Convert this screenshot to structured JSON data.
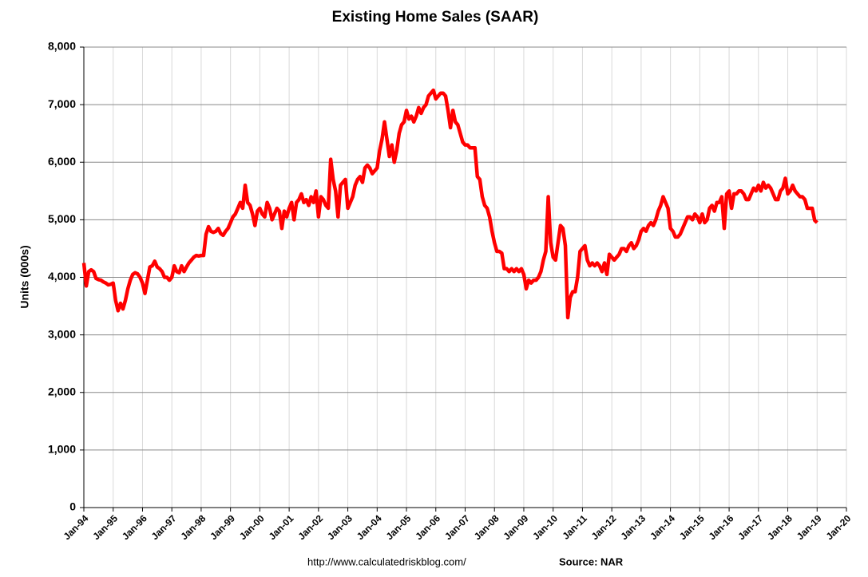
{
  "chart_data": {
    "type": "line",
    "title": "Existing Home Sales (SAAR)",
    "y_label": "Units (000s)",
    "footer_url": "http://www.calculatedriskblog.com/",
    "footer_source": "Source: NAR",
    "color": "#ff0000",
    "grid": true,
    "ylim": [
      0,
      8000
    ],
    "yticks": [
      0,
      {
        "value": 1000,
        "label": "1,000"
      },
      {
        "value": 2000,
        "label": "2,000"
      },
      {
        "value": 3000,
        "label": "3,000"
      },
      {
        "value": 4000,
        "label": "4,000"
      },
      {
        "value": 5000,
        "label": "5,000"
      },
      {
        "value": 6000,
        "label": "6,000"
      },
      {
        "value": 7000,
        "label": "7,000"
      },
      {
        "value": 8000,
        "label": "8,000"
      }
    ],
    "categories": [
      "Jan-94",
      null,
      null,
      null,
      null,
      null,
      null,
      null,
      null,
      null,
      null,
      null,
      "Jan-95",
      null,
      null,
      null,
      null,
      null,
      null,
      null,
      null,
      null,
      null,
      null,
      "Jan-96",
      null,
      null,
      null,
      null,
      null,
      null,
      null,
      null,
      null,
      null,
      null,
      "Jan-97",
      null,
      null,
      null,
      null,
      null,
      null,
      null,
      null,
      null,
      null,
      null,
      "Jan-98",
      null,
      null,
      null,
      null,
      null,
      null,
      null,
      null,
      null,
      null,
      null,
      "Jan-99",
      null,
      null,
      null,
      null,
      null,
      null,
      null,
      null,
      null,
      null,
      null,
      "Jan-00",
      null,
      null,
      null,
      null,
      null,
      null,
      null,
      null,
      null,
      null,
      null,
      "Jan-01",
      null,
      null,
      null,
      null,
      null,
      null,
      null,
      null,
      null,
      null,
      null,
      "Jan-02",
      null,
      null,
      null,
      null,
      null,
      null,
      null,
      null,
      null,
      null,
      null,
      "Jan-03",
      null,
      null,
      null,
      null,
      null,
      null,
      null,
      null,
      null,
      null,
      null,
      "Jan-04",
      null,
      null,
      null,
      null,
      null,
      null,
      null,
      null,
      null,
      null,
      null,
      "Jan-05",
      null,
      null,
      null,
      null,
      null,
      null,
      null,
      null,
      null,
      null,
      null,
      "Jan-06",
      null,
      null,
      null,
      null,
      null,
      null,
      null,
      null,
      null,
      null,
      null,
      "Jan-07",
      null,
      null,
      null,
      null,
      null,
      null,
      null,
      null,
      null,
      null,
      null,
      "Jan-08",
      null,
      null,
      null,
      null,
      null,
      null,
      null,
      null,
      null,
      null,
      null,
      "Jan-09",
      null,
      null,
      null,
      null,
      null,
      null,
      null,
      null,
      null,
      null,
      null,
      "Jan-10",
      null,
      null,
      null,
      null,
      null,
      null,
      null,
      null,
      null,
      null,
      null,
      "Jan-11",
      null,
      null,
      null,
      null,
      null,
      null,
      null,
      null,
      null,
      null,
      null,
      "Jan-12",
      null,
      null,
      null,
      null,
      null,
      null,
      null,
      null,
      null,
      null,
      null,
      "Jan-13",
      null,
      null,
      null,
      null,
      null,
      null,
      null,
      null,
      null,
      null,
      null,
      "Jan-14",
      null,
      null,
      null,
      null,
      null,
      null,
      null,
      null,
      null,
      null,
      null,
      "Jan-15",
      null,
      null,
      null,
      null,
      null,
      null,
      null,
      null,
      null,
      null,
      null,
      "Jan-16",
      null,
      null,
      null,
      null,
      null,
      null,
      null,
      null,
      null,
      null,
      null,
      "Jan-17",
      null,
      null,
      null,
      null,
      null,
      null,
      null,
      null,
      null,
      null,
      null,
      "Jan-18",
      null,
      null,
      null,
      null,
      null,
      null,
      null,
      null,
      null,
      null,
      null,
      "Jan-19",
      null,
      null,
      null,
      null,
      null,
      null,
      null,
      null,
      null,
      null,
      null,
      "Jan-20"
    ],
    "values": [
      4250,
      3850,
      4100,
      4130,
      4100,
      3980,
      3960,
      3950,
      3920,
      3900,
      3870,
      3880,
      3900,
      3600,
      3420,
      3550,
      3450,
      3600,
      3800,
      3950,
      4050,
      4080,
      4060,
      4000,
      3900,
      3720,
      3950,
      4180,
      4200,
      4280,
      4180,
      4150,
      4100,
      4000,
      4000,
      3950,
      4000,
      4200,
      4100,
      4080,
      4200,
      4100,
      4180,
      4250,
      4300,
      4350,
      4380,
      4370,
      4380,
      4380,
      4750,
      4880,
      4800,
      4780,
      4800,
      4850,
      4760,
      4730,
      4800,
      4850,
      4950,
      5050,
      5100,
      5200,
      5300,
      5200,
      5600,
      5300,
      5250,
      5100,
      4900,
      5150,
      5200,
      5100,
      5050,
      5300,
      5200,
      5000,
      5100,
      5200,
      5150,
      4850,
      5150,
      5050,
      5200,
      5300,
      5000,
      5300,
      5350,
      5450,
      5300,
      5350,
      5250,
      5400,
      5300,
      5500,
      5050,
      5400,
      5350,
      5250,
      5200,
      6050,
      5700,
      5500,
      5050,
      5600,
      5650,
      5700,
      5200,
      5300,
      5400,
      5600,
      5700,
      5750,
      5650,
      5900,
      5950,
      5900,
      5800,
      5850,
      5900,
      6200,
      6400,
      6700,
      6400,
      6100,
      6300,
      6000,
      6200,
      6500,
      6650,
      6700,
      6900,
      6750,
      6800,
      6700,
      6800,
      6950,
      6850,
      6950,
      7000,
      7150,
      7200,
      7250,
      7100,
      7150,
      7200,
      7200,
      7150,
      6900,
      6600,
      6900,
      6700,
      6650,
      6500,
      6350,
      6300,
      6300,
      6250,
      6250,
      6250,
      5750,
      5700,
      5400,
      5250,
      5200,
      5050,
      4800,
      4600,
      4450,
      4450,
      4420,
      4150,
      4150,
      4100,
      4150,
      4100,
      4150,
      4100,
      4150,
      4050,
      3800,
      3950,
      3900,
      3950,
      3950,
      4000,
      4100,
      4300,
      4450,
      5400,
      4600,
      4350,
      4300,
      4600,
      4900,
      4850,
      4550,
      3300,
      3650,
      3750,
      3750,
      4000,
      4450,
      4500,
      4550,
      4300,
      4200,
      4250,
      4200,
      4250,
      4200,
      4100,
      4250,
      4050,
      4400,
      4350,
      4300,
      4350,
      4400,
      4500,
      4500,
      4450,
      4550,
      4600,
      4500,
      4550,
      4650,
      4800,
      4850,
      4800,
      4900,
      4950,
      4900,
      5000,
      5150,
      5250,
      5400,
      5300,
      5200,
      4850,
      4800,
      4700,
      4700,
      4750,
      4850,
      4950,
      5050,
      5050,
      5000,
      5100,
      5050,
      4950,
      5100,
      4950,
      5000,
      5200,
      5250,
      5150,
      5300,
      5300,
      5400,
      4850,
      5450,
      5500,
      5200,
      5450,
      5450,
      5500,
      5500,
      5450,
      5350,
      5350,
      5450,
      5550,
      5500,
      5600,
      5500,
      5650,
      5550,
      5600,
      5550,
      5450,
      5350,
      5350,
      5500,
      5550,
      5720,
      5450,
      5500,
      5600,
      5500,
      5450,
      5400,
      5400,
      5350,
      5200,
      5200,
      5200,
      4990,
      4950,
      null,
      null,
      null,
      null,
      null,
      null,
      null,
      null,
      null,
      null,
      null,
      null
    ]
  }
}
